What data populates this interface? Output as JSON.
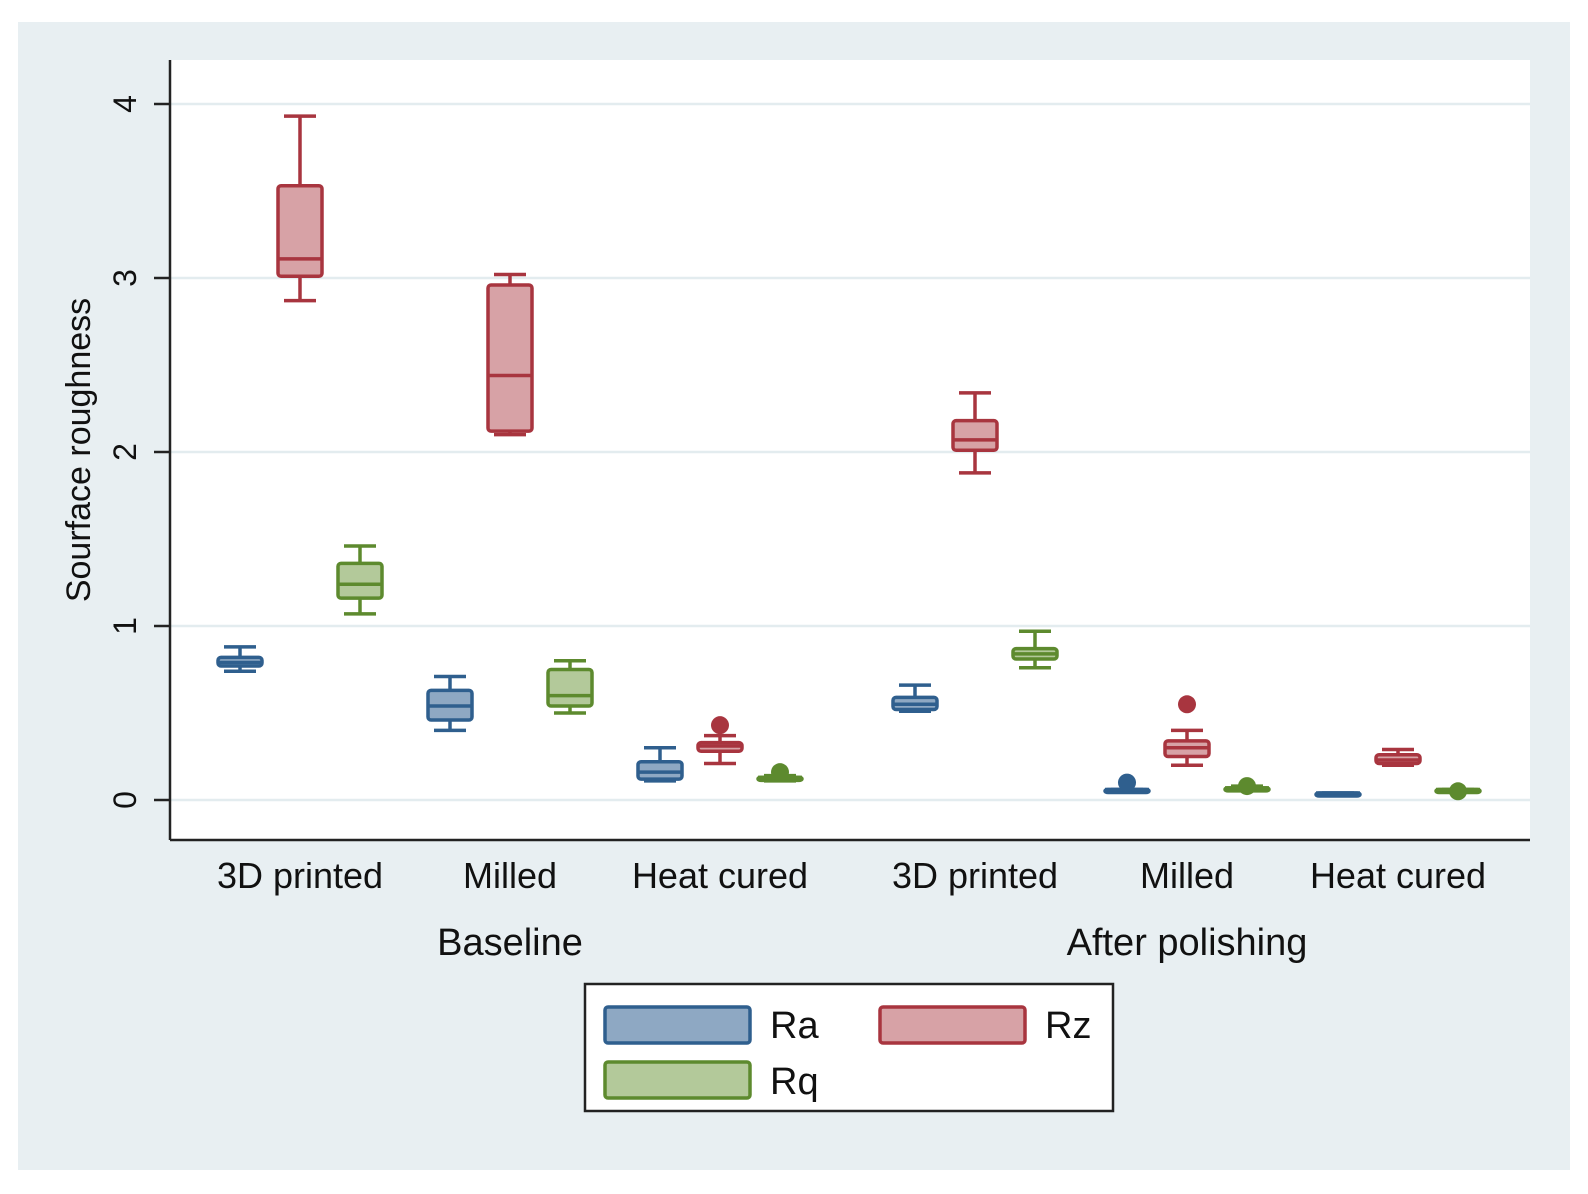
{
  "chart_data": {
    "type": "box",
    "title": "",
    "ylabel": "Sourface roughness",
    "xlabel": "",
    "ylim": [
      -0.24,
      4.2
    ],
    "yticks": [
      0,
      1,
      2,
      3,
      4
    ],
    "grid": true,
    "groups": [
      {
        "label": "Baseline",
        "categories": [
          "3D printed",
          "Milled",
          "Heat cured"
        ]
      },
      {
        "label": "After polishing",
        "categories": [
          "3D printed",
          "Milled",
          "Heat cured"
        ]
      }
    ],
    "legend": {
      "placement": "bottom",
      "items": [
        "Ra",
        "Rz",
        "Rq"
      ]
    },
    "series": [
      {
        "name": "Ra",
        "color": "#2f5f8e",
        "fill": "#8ea8c3",
        "boxes": [
          {
            "group": "Baseline",
            "category": "3D printed",
            "min": 0.74,
            "q1": 0.77,
            "median": 0.79,
            "q3": 0.82,
            "max": 0.88,
            "outliers": []
          },
          {
            "group": "Baseline",
            "category": "Milled",
            "min": 0.4,
            "q1": 0.46,
            "median": 0.54,
            "q3": 0.63,
            "max": 0.71,
            "outliers": []
          },
          {
            "group": "Baseline",
            "category": "Heat cured",
            "min": 0.11,
            "q1": 0.12,
            "median": 0.16,
            "q3": 0.22,
            "max": 0.3,
            "outliers": []
          },
          {
            "group": "After polishing",
            "category": "3D printed",
            "min": 0.51,
            "q1": 0.52,
            "median": 0.55,
            "q3": 0.59,
            "max": 0.66,
            "outliers": []
          },
          {
            "group": "After polishing",
            "category": "Milled",
            "min": 0.05,
            "q1": 0.05,
            "median": 0.06,
            "q3": 0.06,
            "max": 0.06,
            "outliers": [
              0.1
            ]
          },
          {
            "group": "After polishing",
            "category": "Heat cured",
            "min": 0.03,
            "q1": 0.03,
            "median": 0.04,
            "q3": 0.04,
            "max": 0.04,
            "outliers": []
          }
        ]
      },
      {
        "name": "Rz",
        "color": "#a8353f",
        "fill": "#d7a2a6",
        "boxes": [
          {
            "group": "Baseline",
            "category": "3D printed",
            "min": 2.87,
            "q1": 3.01,
            "median": 3.11,
            "q3": 3.53,
            "max": 3.93,
            "outliers": []
          },
          {
            "group": "Baseline",
            "category": "Milled",
            "min": 2.1,
            "q1": 2.12,
            "median": 2.44,
            "q3": 2.96,
            "max": 3.02,
            "outliers": []
          },
          {
            "group": "Baseline",
            "category": "Heat cured",
            "min": 0.21,
            "q1": 0.28,
            "median": 0.31,
            "q3": 0.33,
            "max": 0.37,
            "outliers": [
              0.43
            ]
          },
          {
            "group": "After polishing",
            "category": "3D printed",
            "min": 1.88,
            "q1": 2.01,
            "median": 2.07,
            "q3": 2.18,
            "max": 2.34,
            "outliers": []
          },
          {
            "group": "After polishing",
            "category": "Milled",
            "min": 0.2,
            "q1": 0.25,
            "median": 0.3,
            "q3": 0.34,
            "max": 0.4,
            "outliers": [
              0.55
            ]
          },
          {
            "group": "After polishing",
            "category": "Heat cured",
            "min": 0.2,
            "q1": 0.21,
            "median": 0.23,
            "q3": 0.26,
            "max": 0.29,
            "outliers": []
          }
        ]
      },
      {
        "name": "Rq",
        "color": "#5d8a2e",
        "fill": "#b3c99a",
        "boxes": [
          {
            "group": "Baseline",
            "category": "3D printed",
            "min": 1.07,
            "q1": 1.16,
            "median": 1.24,
            "q3": 1.36,
            "max": 1.46,
            "outliers": []
          },
          {
            "group": "Baseline",
            "category": "Milled",
            "min": 0.5,
            "q1": 0.54,
            "median": 0.6,
            "q3": 0.75,
            "max": 0.8,
            "outliers": []
          },
          {
            "group": "Baseline",
            "category": "Heat cured",
            "min": 0.11,
            "q1": 0.12,
            "median": 0.13,
            "q3": 0.13,
            "max": 0.14,
            "outliers": [
              0.16
            ]
          },
          {
            "group": "After polishing",
            "category": "3D printed",
            "min": 0.76,
            "q1": 0.81,
            "median": 0.84,
            "q3": 0.87,
            "max": 0.97,
            "outliers": []
          },
          {
            "group": "After polishing",
            "category": "Milled",
            "min": 0.06,
            "q1": 0.06,
            "median": 0.07,
            "q3": 0.07,
            "max": 0.08,
            "outliers": [
              0.08
            ]
          },
          {
            "group": "After polishing",
            "category": "Heat cured",
            "min": 0.05,
            "q1": 0.05,
            "median": 0.06,
            "q3": 0.06,
            "max": 0.06,
            "outliers": [
              0.05
            ]
          }
        ]
      }
    ]
  }
}
